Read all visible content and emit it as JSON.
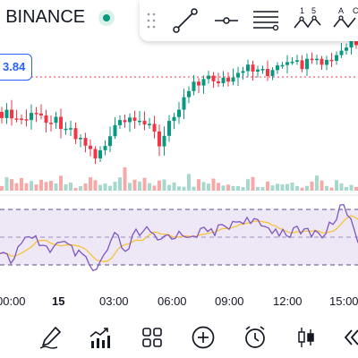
{
  "header": {
    "title": "- BINANCE",
    "status_color": "#089981"
  },
  "price_label": {
    "value": "3.84",
    "color": "#2962ff"
  },
  "drawing_tools": [
    {
      "name": "drag-handle-icon"
    },
    {
      "name": "trend-line-icon"
    },
    {
      "name": "horizontal-ray-icon"
    },
    {
      "name": "fib-retracement-icon"
    },
    {
      "name": "xabcd-pattern-icon",
      "text": "1 5"
    },
    {
      "name": "abcd-pattern-icon",
      "text": "A C"
    }
  ],
  "time_axis": {
    "labels": [
      "00:00",
      "15",
      "03:00",
      "06:00",
      "09:00",
      "12:00",
      "15:00"
    ],
    "day_label": "15"
  },
  "chart_colors": {
    "up": "#089981",
    "down": "#f23645",
    "volume_up": "#a7d8cd",
    "volume_down": "#f7a9a7",
    "rsi_line": "#7e57c2",
    "rsi_ma": "#f7c33b",
    "rsi_band": "#ede7f6",
    "price_line": "#f23645"
  },
  "bottom_toolbar": [
    {
      "name": "drawing-pen-icon"
    },
    {
      "name": "indicators-icon"
    },
    {
      "name": "layouts-grid-icon"
    },
    {
      "name": "add-circle-icon"
    },
    {
      "name": "alert-clock-icon"
    },
    {
      "name": "candles-type-icon"
    },
    {
      "name": "replay-icon"
    }
  ]
}
